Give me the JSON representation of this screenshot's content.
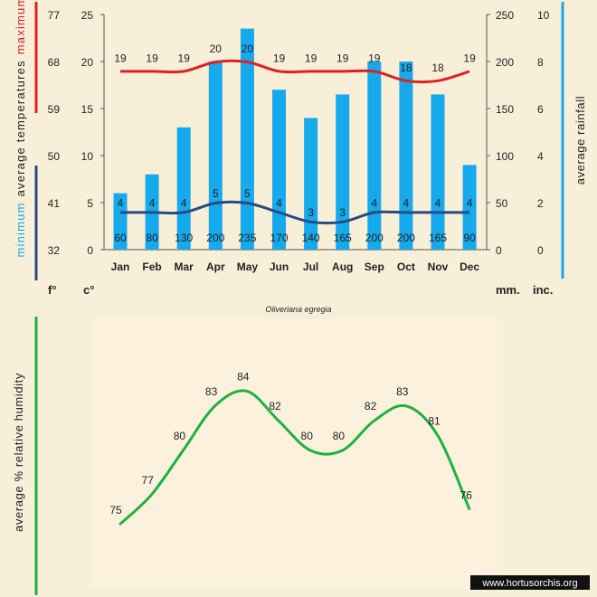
{
  "colors": {
    "background": "#f8efd9",
    "panel": "#fbf1dc",
    "rainfall_bar": "#16a9ec",
    "max_temp_line": "#e02020",
    "min_temp_line": "#2a4a80",
    "humidity_line": "#20b040",
    "axis": "#555555",
    "text": "#222222"
  },
  "labels": {
    "title": "Oliveriana egregia",
    "unit_fahrenheit": "f°",
    "unit_celsius": "c°",
    "unit_mm": "mm.",
    "unit_inch": "inc.",
    "left_axis_maximum": "maximum",
    "left_axis_middle": "average temperatures",
    "left_axis_minimum": "minimum",
    "right_axis_label": "average rainfall",
    "humidity_axis_label": "average % relative humidity",
    "watermark": "www.hortusorchis.org"
  },
  "chart_data": [
    {
      "type": "bar",
      "title": "Oliveriana egregia",
      "categories": [
        "Jan",
        "Feb",
        "Mar",
        "Apr",
        "May",
        "Jun",
        "Jul",
        "Aug",
        "Sep",
        "Oct",
        "Nov",
        "Dec"
      ],
      "series": [
        {
          "name": "average rainfall (mm)",
          "values": [
            60,
            80,
            130,
            200,
            235,
            170,
            140,
            165,
            200,
            200,
            165,
            90
          ]
        },
        {
          "name": "maximum temperature (°C)",
          "values": [
            19,
            19,
            19,
            20,
            20,
            19,
            19,
            19,
            19,
            18,
            18,
            19
          ]
        },
        {
          "name": "minimum temperature (°C)",
          "values": [
            4,
            4,
            4,
            5,
            5,
            4,
            3,
            3,
            4,
            4,
            4,
            4
          ]
        }
      ],
      "ylim_celsius": [
        0,
        25
      ],
      "yticks_celsius": [
        "0",
        "5",
        "10",
        "15",
        "20",
        "25"
      ],
      "yticks_fahrenheit": [
        "32",
        "41",
        "50",
        "59",
        "68",
        "77"
      ],
      "ylim_mm": [
        0,
        250
      ],
      "yticks_mm": [
        "0",
        "50",
        "100",
        "150",
        "200",
        "250"
      ],
      "yticks_inch": [
        "0",
        "2",
        "4",
        "6",
        "8",
        "10"
      ]
    },
    {
      "type": "line",
      "categories": [
        "Jan",
        "Feb",
        "Mar",
        "Apr",
        "May",
        "Jun",
        "Jul",
        "Aug",
        "Sep",
        "Oct",
        "Nov",
        "Dec"
      ],
      "series": [
        {
          "name": "average % relative humidity",
          "values": [
            75,
            77,
            80,
            83,
            84,
            82,
            80,
            80,
            82,
            83,
            81,
            76
          ]
        }
      ]
    }
  ]
}
